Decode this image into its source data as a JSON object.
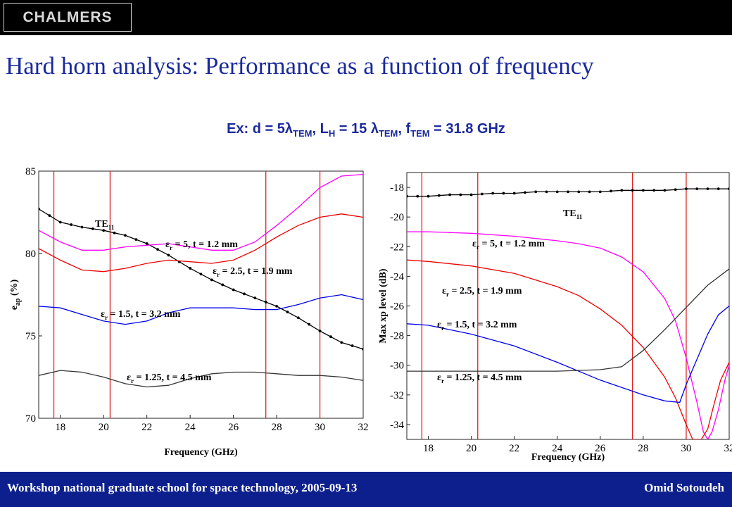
{
  "header": {
    "logo_text": "CHALMERS"
  },
  "title": "Hard horn analysis: Performance as a function of frequency",
  "subtitle": {
    "prefix": "Ex: d = 5λ",
    "sub1": "TEM",
    "mid1": ", L",
    "sub2": "H",
    "mid2": " = 15 λ",
    "sub3": "TEM",
    "mid3": ", f",
    "sub4": "TEM",
    "suffix": " = 31.8 GHz"
  },
  "footer": {
    "left": "Workshop national graduate school for space technology, 2005-09-13",
    "right": "Omid Sotoudeh"
  },
  "chart_data": [
    {
      "type": "line",
      "xlabel": "Frequency (GHz)",
      "ylabel": "e_ap (%)",
      "xlim": [
        17,
        32
      ],
      "ylim": [
        70,
        85
      ],
      "xticks": [
        18,
        20,
        22,
        24,
        26,
        28,
        30,
        32
      ],
      "yticks": [
        70,
        75,
        80,
        85
      ],
      "grid": false,
      "vlines": [
        17.7,
        20.3,
        27.5,
        30
      ],
      "series": [
        {
          "name": "TE11",
          "label_main": "TE",
          "label_sub": "11",
          "color": "#000000",
          "markers": true,
          "x": [
            17,
            18,
            19,
            20,
            21,
            22,
            23,
            24,
            25,
            26,
            27,
            28,
            29,
            30,
            31,
            32
          ],
          "y": [
            82.7,
            81.9,
            81.6,
            81.4,
            81.1,
            80.6,
            79.9,
            79.1,
            78.4,
            77.8,
            77.3,
            76.8,
            76.1,
            75.3,
            74.6,
            74.2
          ]
        },
        {
          "name": "εr = 5, t = 1.2 mm",
          "label_main": "ε",
          "label_sub": "r",
          "label_rest": " = 5, t = 1.2 mm",
          "color": "#ff00ff",
          "markers": false,
          "x": [
            17,
            18,
            19,
            20,
            21,
            22,
            23,
            24,
            25,
            26,
            27,
            28,
            29,
            30,
            31,
            32
          ],
          "y": [
            81.4,
            80.7,
            80.2,
            80.2,
            80.4,
            80.5,
            80.6,
            80.4,
            80.2,
            80.2,
            80.7,
            81.7,
            82.8,
            84.0,
            84.7,
            84.8
          ]
        },
        {
          "name": "εr = 2.5, t = 1.9 mm",
          "label_main": "ε",
          "label_sub": "r",
          "label_rest": " = 2.5, t = 1.9 mm",
          "color": "#ee0000",
          "markers": false,
          "x": [
            17,
            18,
            19,
            20,
            21,
            22,
            23,
            24,
            25,
            26,
            27,
            28,
            29,
            30,
            31,
            32
          ],
          "y": [
            80.3,
            79.6,
            79.0,
            78.9,
            79.1,
            79.4,
            79.6,
            79.5,
            79.4,
            79.6,
            80.2,
            81.0,
            81.7,
            82.2,
            82.4,
            82.2
          ]
        },
        {
          "name": "εr = 1.5, t = 3.2 mm",
          "label_main": "ε",
          "label_sub": "r",
          "label_rest": " = 1.5, t = 3.2 mm",
          "color": "#0000ee",
          "markers": false,
          "x": [
            17,
            18,
            19,
            20,
            21,
            22,
            23,
            24,
            25,
            26,
            27,
            28,
            29,
            30,
            31,
            32
          ],
          "y": [
            76.8,
            76.7,
            76.3,
            75.9,
            75.7,
            75.9,
            76.4,
            76.7,
            76.7,
            76.7,
            76.6,
            76.6,
            76.9,
            77.3,
            77.5,
            77.2
          ]
        },
        {
          "name": "εr = 1.25, t = 4.5 mm",
          "label_main": "ε",
          "label_sub": "r",
          "label_rest": " = 1.25, t = 4.5 mm",
          "color": "#333333",
          "markers": false,
          "x": [
            17,
            18,
            19,
            20,
            21,
            22,
            23,
            24,
            25,
            26,
            27,
            28,
            29,
            30,
            31,
            32
          ],
          "y": [
            72.6,
            72.9,
            72.8,
            72.5,
            72.1,
            71.9,
            72.0,
            72.4,
            72.7,
            72.8,
            72.8,
            72.7,
            72.6,
            72.6,
            72.5,
            72.3
          ]
        }
      ]
    },
    {
      "type": "line",
      "xlabel": "Frequency (GHz)",
      "ylabel": "Max xp level (dB)",
      "xlim": [
        17,
        32
      ],
      "ylim": [
        -35,
        -17
      ],
      "xticks": [
        18,
        20,
        22,
        24,
        26,
        28,
        30,
        32
      ],
      "yticks": [
        -34,
        -32,
        -30,
        -28,
        -26,
        -24,
        -22,
        -20,
        -18
      ],
      "grid": false,
      "vlines": [
        17.7,
        20.3,
        27.5,
        30
      ],
      "series": [
        {
          "name": "TE11",
          "label_main": "TE",
          "label_sub": "11",
          "color": "#000000",
          "markers": true,
          "x": [
            17,
            18,
            19,
            20,
            21,
            22,
            23,
            24,
            25,
            26,
            27,
            28,
            29,
            30,
            31,
            32
          ],
          "y": [
            -18.6,
            -18.6,
            -18.5,
            -18.5,
            -18.4,
            -18.4,
            -18.3,
            -18.3,
            -18.3,
            -18.3,
            -18.2,
            -18.2,
            -18.2,
            -18.1,
            -18.1,
            -18.1
          ]
        },
        {
          "name": "εr = 5, t = 1.2 mm",
          "label_main": "ε",
          "label_sub": "r",
          "label_rest": " = 5, t = 1.2 mm",
          "color": "#ff00ff",
          "markers": false,
          "x": [
            17,
            18,
            20,
            22,
            24,
            25,
            26,
            27,
            28,
            29,
            29.5,
            30,
            30.5,
            30.8,
            31.0,
            31.2,
            31.5,
            31.8,
            32
          ],
          "y": [
            -21.0,
            -21.0,
            -21.1,
            -21.3,
            -21.6,
            -21.8,
            -22.1,
            -22.7,
            -23.7,
            -25.5,
            -27.0,
            -29.5,
            -32.5,
            -34.5,
            -35.0,
            -34.5,
            -33.0,
            -31.0,
            -30.0
          ]
        },
        {
          "name": "εr = 2.5, t = 1.9 mm",
          "label_main": "ε",
          "label_sub": "r",
          "label_rest": " = 2.5, t = 1.9 mm",
          "color": "#ee0000",
          "markers": false,
          "x": [
            17,
            18,
            20,
            22,
            24,
            25,
            26,
            27,
            28,
            29,
            29.5,
            30,
            30.3,
            30.5,
            30.7,
            31.0,
            31.3,
            31.6,
            32
          ],
          "y": [
            -22.9,
            -23.0,
            -23.3,
            -23.8,
            -24.7,
            -25.3,
            -26.2,
            -27.3,
            -28.8,
            -30.8,
            -32.2,
            -34.0,
            -35.0,
            -35.0,
            -35.0,
            -34.3,
            -32.6,
            -31.0,
            -29.8
          ]
        },
        {
          "name": "εr = 1.5, t = 3.2 mm",
          "label_main": "ε",
          "label_sub": "r",
          "label_rest": " = 1.5, t = 3.2 mm",
          "color": "#0000ee",
          "markers": false,
          "x": [
            17,
            18,
            20,
            22,
            24,
            26,
            28,
            29,
            29.7,
            30,
            30.5,
            31,
            31.5,
            32
          ],
          "y": [
            -27.2,
            -27.3,
            -27.9,
            -28.7,
            -29.8,
            -31.0,
            -32.0,
            -32.4,
            -32.5,
            -31.3,
            -29.6,
            -27.9,
            -26.6,
            -26.0
          ]
        },
        {
          "name": "εr = 1.25, t = 4.5 mm",
          "label_main": "ε",
          "label_sub": "r",
          "label_rest": " = 1.25, t = 4.5 mm",
          "color": "#333333",
          "markers": false,
          "x": [
            17,
            18,
            20,
            22,
            24,
            26,
            27,
            28,
            29,
            30,
            31,
            32
          ],
          "y": [
            -30.4,
            -30.4,
            -30.4,
            -30.4,
            -30.4,
            -30.3,
            -30.1,
            -29.0,
            -27.6,
            -26.1,
            -24.6,
            -23.5
          ]
        }
      ]
    }
  ]
}
